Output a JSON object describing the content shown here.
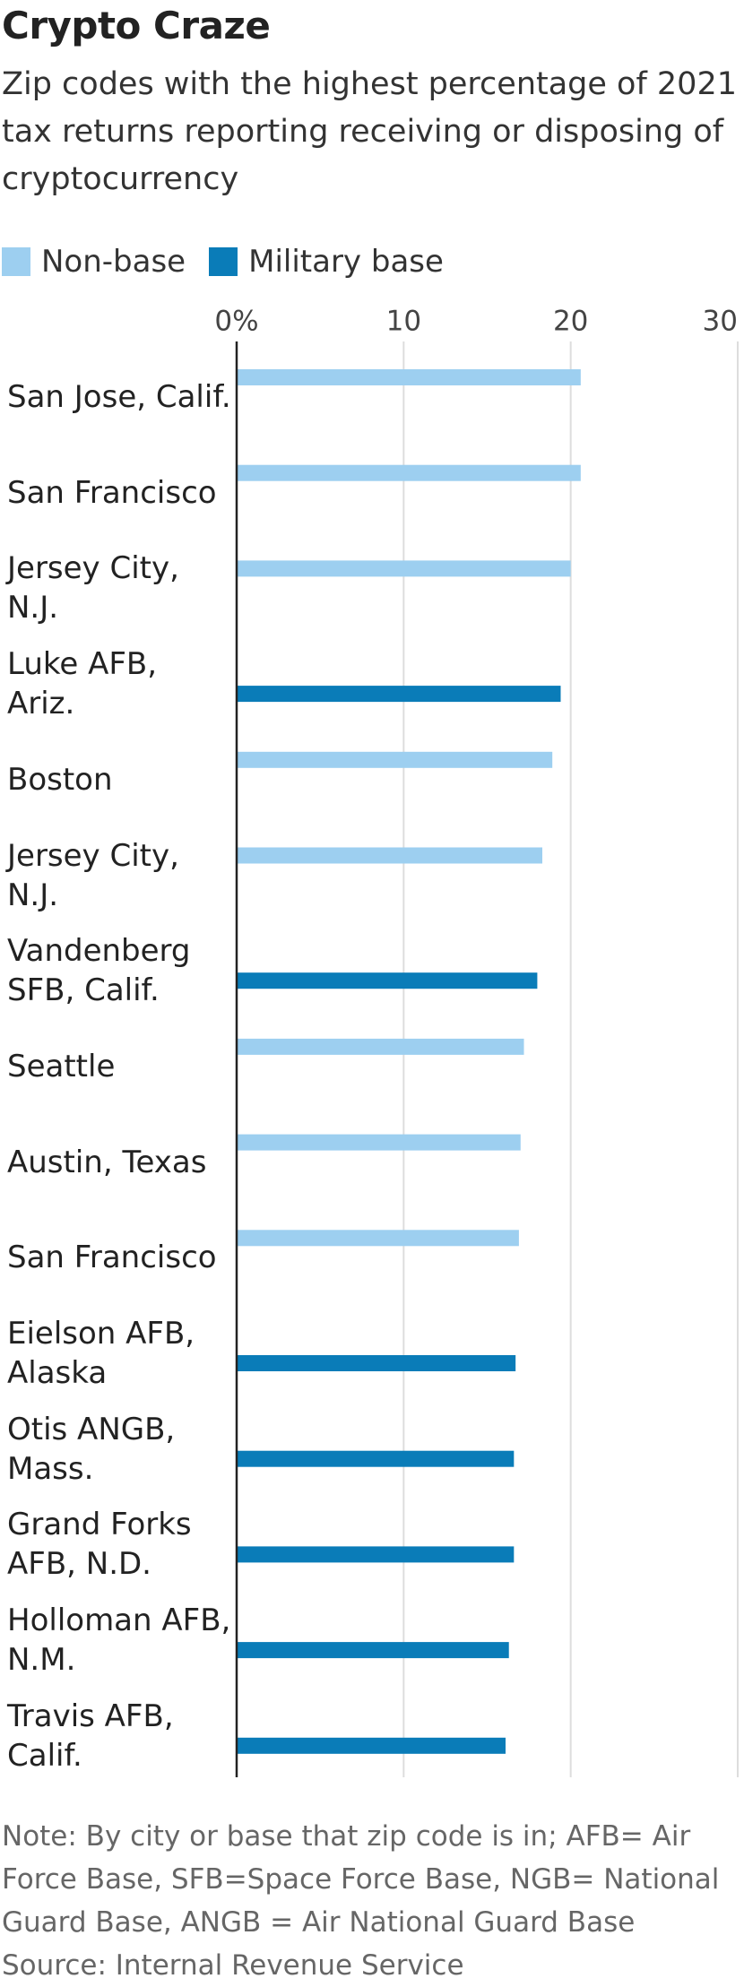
{
  "chart_data": {
    "type": "bar",
    "orientation": "horizontal",
    "title": "Crypto Craze",
    "subtitle": "Zip codes with the highest percentage of 2021 tax returns reporting receiving or disposing of cryptocurrency",
    "categories": [
      "San Jose, Calif.",
      "San Francisco",
      "Jersey City, N.J.",
      "Luke AFB, Ariz.",
      "Boston",
      "Jersey City, N.J.",
      "Vandenberg SFB, Calif.",
      "Seattle",
      "Austin, Texas",
      "San Francisco",
      "Eielson AFB, Alaska",
      "Otis ANGB, Mass.",
      "Grand Forks AFB, N.D.",
      "Holloman AFB, N.M.",
      "Travis AFB, Calif."
    ],
    "series": [
      {
        "name": "Non-base",
        "color": "#9dcff0",
        "values": [
          20.6,
          20.6,
          20.0,
          null,
          18.9,
          18.3,
          null,
          17.2,
          17.0,
          16.9,
          null,
          null,
          null,
          null,
          null
        ]
      },
      {
        "name": "Military base",
        "color": "#0a7cb8",
        "values": [
          null,
          null,
          null,
          19.4,
          null,
          null,
          18.0,
          null,
          null,
          null,
          16.7,
          16.6,
          16.6,
          16.3,
          16.1
        ]
      }
    ],
    "xlim": [
      0,
      30
    ],
    "xticks": [
      {
        "value": 0,
        "label": "0%"
      },
      10,
      20,
      30
    ],
    "grid": true,
    "note": "Note: By city or base that zip code is in; AFB= Air Force Base, SFB=Space Force Base, NGB= National Guard Base, ANGB = Air National Guard Base",
    "source": "Source: Internal Revenue Service"
  }
}
